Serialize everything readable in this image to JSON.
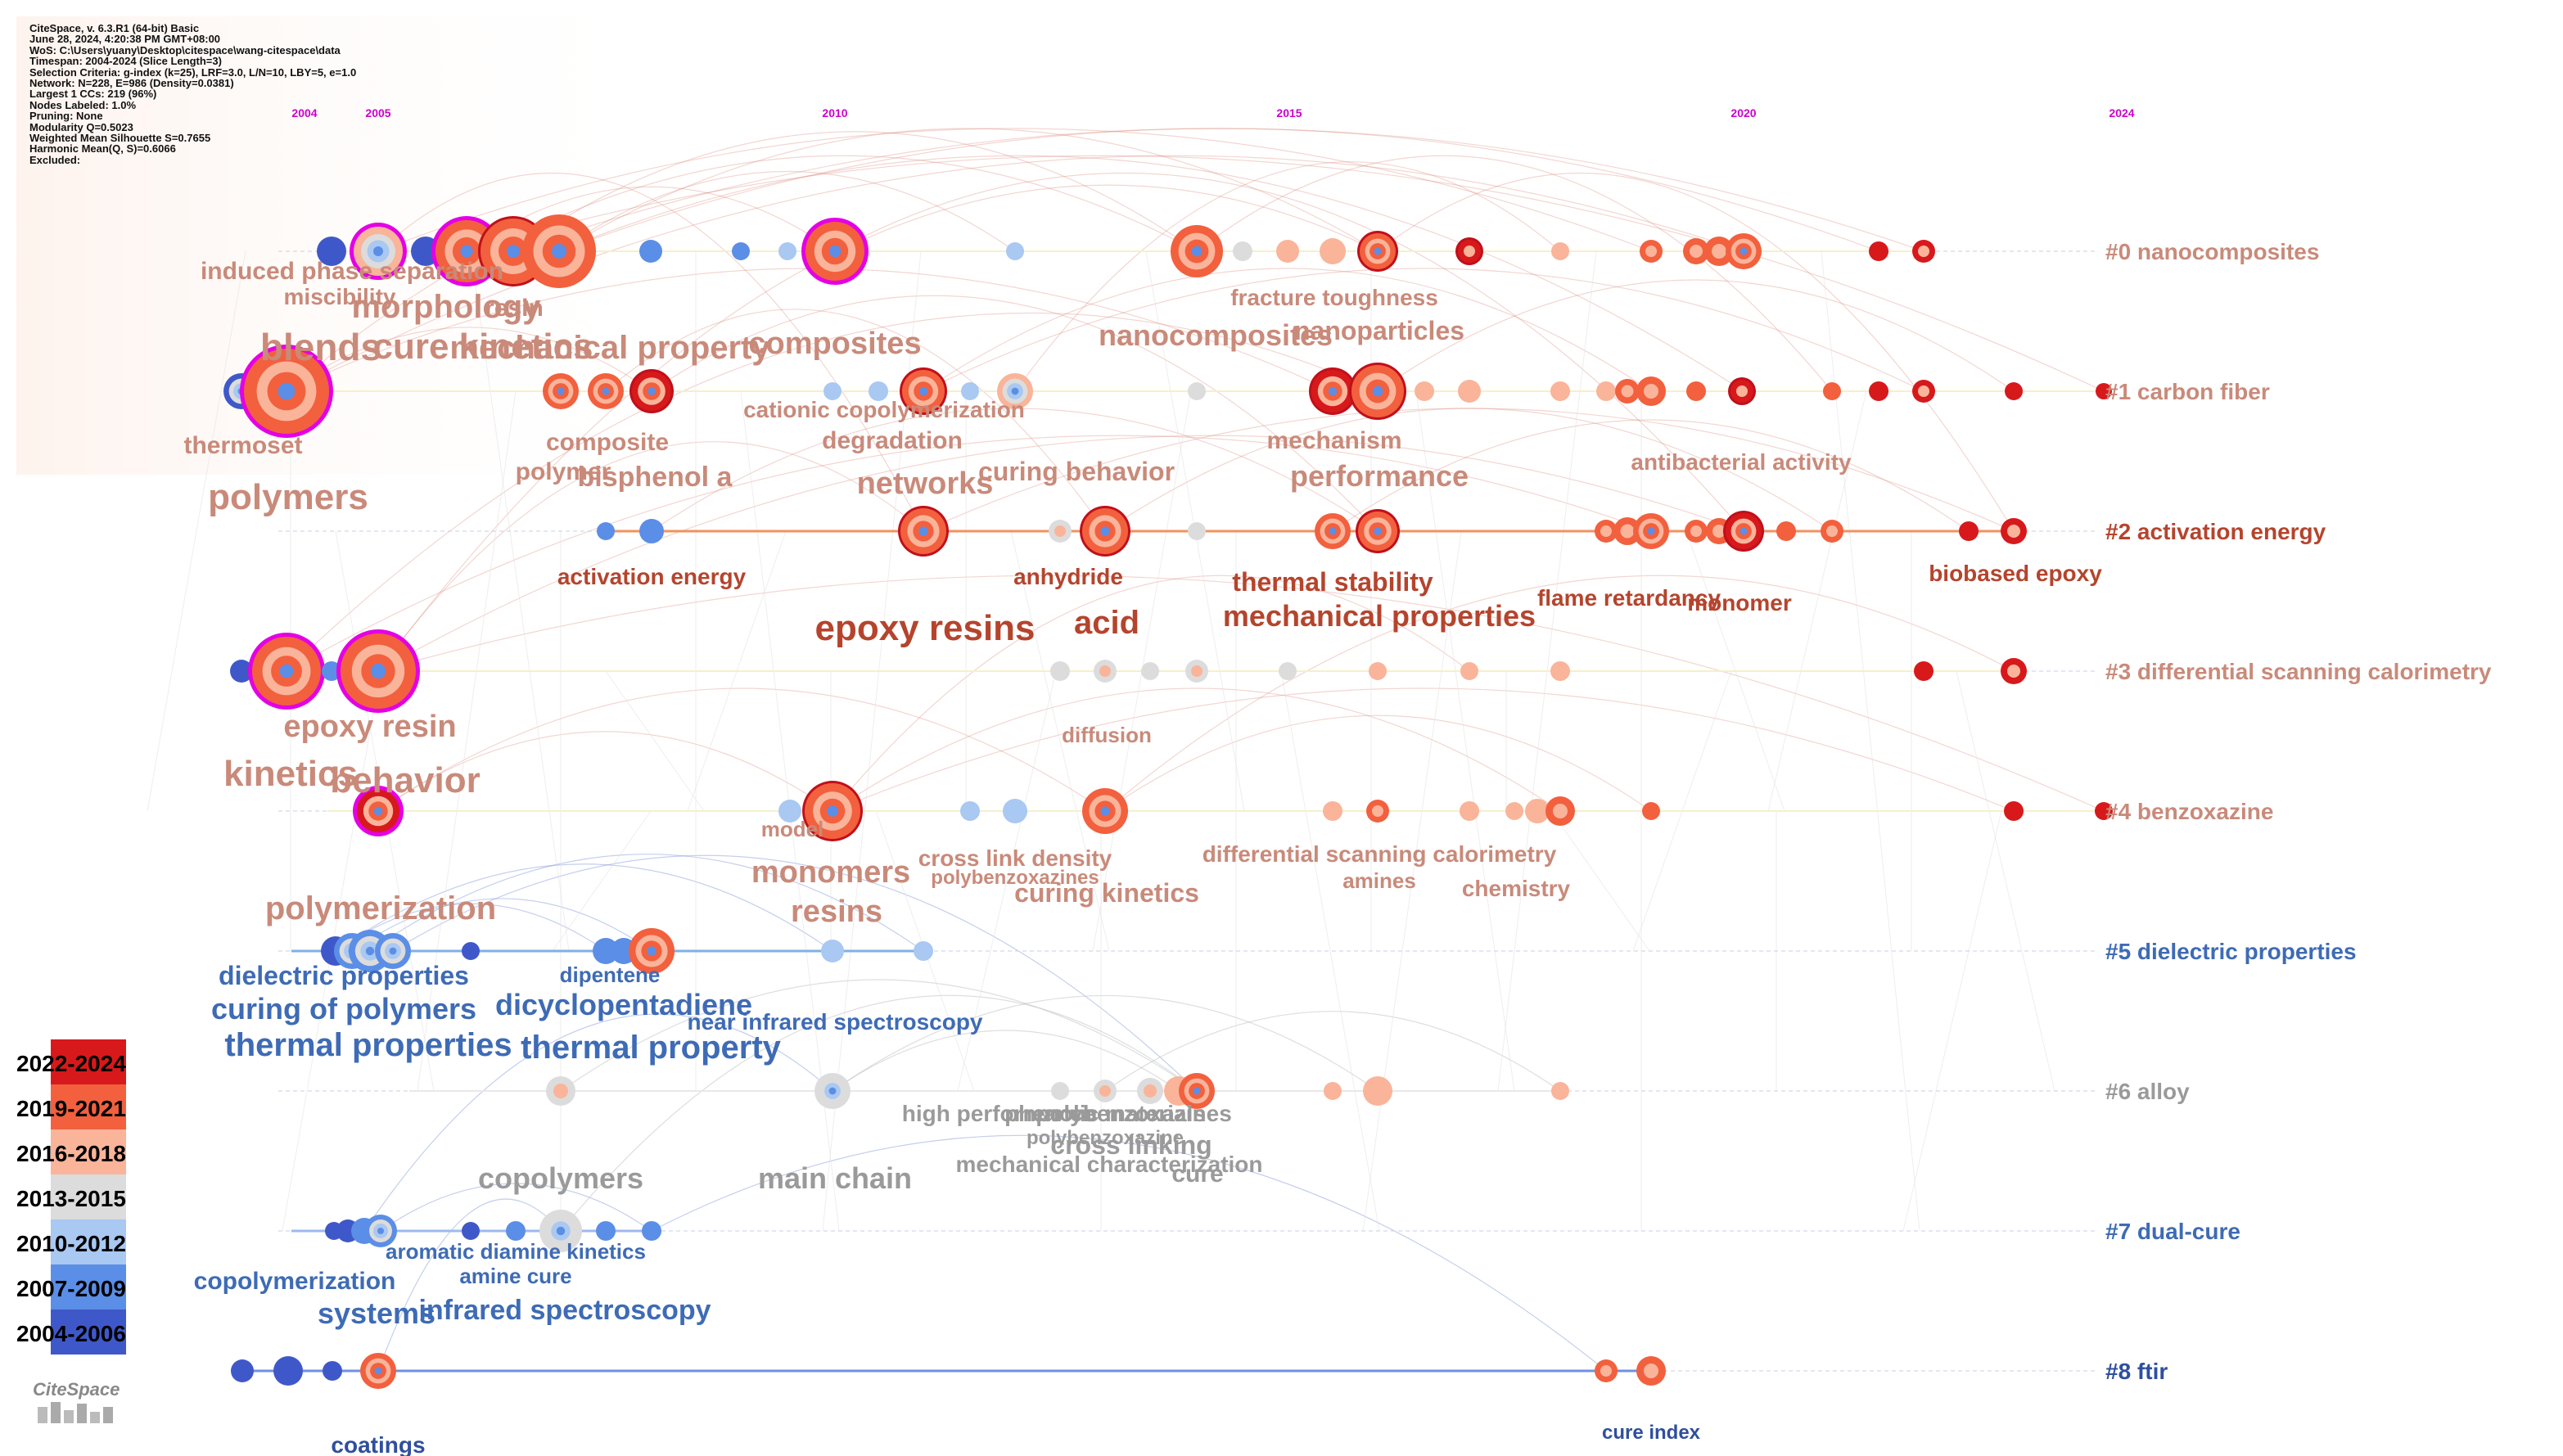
{
  "info": {
    "lines": [
      "CiteSpace, v. 6.3.R1 (64-bit) Basic",
      "June 28, 2024, 4:20:38 PM GMT+08:00",
      "WoS: C:\\Users\\yuany\\Desktop\\citespace\\wang-citespace\\data",
      "Timespan: 2004-2024 (Slice Length=3)",
      "Selection Criteria: g-index (k=25), LRF=3.0, L/N=10, LBY=5, e=1.0",
      "Network: N=228, E=986 (Density=0.0381)",
      "Largest 1 CCs: 219 (96%)",
      "Nodes Labeled: 1.0%",
      "Pruning: None",
      "Modularity Q=0.5023",
      "Weighted Mean Silhouette S=0.7655",
      "Harmonic Mean(Q, S)=0.6066",
      "Excluded:"
    ]
  },
  "timeline_years": [
    "2004",
    "2005",
    "2010",
    "2015",
    "2020",
    "2024"
  ],
  "legend": {
    "items": [
      {
        "label": "2022-2024",
        "color": "#d7191c"
      },
      {
        "label": "2019-2021",
        "color": "#f2603e"
      },
      {
        "label": "2016-2018",
        "color": "#f9b49a"
      },
      {
        "label": "2013-2015",
        "color": "#dcdcdc"
      },
      {
        "label": "2010-2012",
        "color": "#a9c8f2"
      },
      {
        "label": "2007-2009",
        "color": "#5b8ee6"
      },
      {
        "label": "2004-2006",
        "color": "#3f58c9"
      }
    ],
    "logo_text": "CiteSpace"
  },
  "clusters": [
    {
      "id": "#0 nanocomposites",
      "color": "#c98a7a"
    },
    {
      "id": "#1 carbon fiber",
      "color": "#c98a7a"
    },
    {
      "id": "#2 activation energy",
      "color": "#b5442d"
    },
    {
      "id": "#3 differential scanning calorimetry",
      "color": "#c98a7a"
    },
    {
      "id": "#4 benzoxazine",
      "color": "#c98a7a"
    },
    {
      "id": "#5 dielectric properties",
      "color": "#3e6bb5"
    },
    {
      "id": "#6 alloy",
      "color": "#9a9a9a"
    },
    {
      "id": "#7 dual-cure",
      "color": "#3e6bb5"
    },
    {
      "id": "#8 ftir",
      "color": "#2f4f9e"
    }
  ],
  "keywords": [
    {
      "text": "induced phase separation",
      "color": "#c98a7a"
    },
    {
      "text": "miscibility",
      "color": "#c98a7a"
    },
    {
      "text": "morphology",
      "color": "#c98a7a"
    },
    {
      "text": "resin",
      "color": "#c98a7a"
    },
    {
      "text": "blends",
      "color": "#c98a7a"
    },
    {
      "text": "cure kinetics",
      "color": "#c98a7a"
    },
    {
      "text": "mechanical property",
      "color": "#c98a7a"
    },
    {
      "text": "composites",
      "color": "#c98a7a"
    },
    {
      "text": "fracture toughness",
      "color": "#c98a7a"
    },
    {
      "text": "nanocomposites",
      "color": "#c98a7a"
    },
    {
      "text": "nanoparticles",
      "color": "#c98a7a"
    },
    {
      "text": "thermoset",
      "color": "#c98a7a"
    },
    {
      "text": "composite",
      "color": "#c98a7a"
    },
    {
      "text": "polymer",
      "color": "#c98a7a"
    },
    {
      "text": "bisphenol a",
      "color": "#c98a7a"
    },
    {
      "text": "cationic copolymerization",
      "color": "#c98a7a"
    },
    {
      "text": "degradation",
      "color": "#c98a7a"
    },
    {
      "text": "networks",
      "color": "#c98a7a"
    },
    {
      "text": "curing behavior",
      "color": "#c98a7a"
    },
    {
      "text": "mechanism",
      "color": "#c98a7a"
    },
    {
      "text": "performance",
      "color": "#c98a7a"
    },
    {
      "text": "antibacterial activity",
      "color": "#c98a7a"
    },
    {
      "text": "polymers",
      "color": "#c98a7a"
    },
    {
      "text": "activation energy",
      "color": "#b5442d"
    },
    {
      "text": "anhydride",
      "color": "#b5442d"
    },
    {
      "text": "thermal stability",
      "color": "#b5442d"
    },
    {
      "text": "mechanical properties",
      "color": "#b5442d"
    },
    {
      "text": "flame retardancy",
      "color": "#b5442d"
    },
    {
      "text": "monomer",
      "color": "#b5442d"
    },
    {
      "text": "biobased epoxy",
      "color": "#b5442d"
    },
    {
      "text": "epoxy resins",
      "color": "#b5442d"
    },
    {
      "text": "acid",
      "color": "#b5442d"
    },
    {
      "text": "epoxy resin",
      "color": "#c98a7a"
    },
    {
      "text": "kinetics",
      "color": "#c98a7a"
    },
    {
      "text": "behavior",
      "color": "#c98a7a"
    },
    {
      "text": "diffusion",
      "color": "#c98a7a"
    },
    {
      "text": "model",
      "color": "#c98a7a"
    },
    {
      "text": "monomers",
      "color": "#c98a7a"
    },
    {
      "text": "resins",
      "color": "#c98a7a"
    },
    {
      "text": "cross link density",
      "color": "#c98a7a"
    },
    {
      "text": "polybenzoxazines",
      "color": "#c98a7a"
    },
    {
      "text": "curing kinetics",
      "color": "#c98a7a"
    },
    {
      "text": "differential scanning calorimetry",
      "color": "#c98a7a"
    },
    {
      "text": "amines",
      "color": "#c98a7a"
    },
    {
      "text": "chemistry",
      "color": "#c98a7a"
    },
    {
      "text": "polymerization",
      "color": "#c98a7a"
    },
    {
      "text": "dielectric properties",
      "color": "#3e6bb5"
    },
    {
      "text": "curing of polymers",
      "color": "#3e6bb5"
    },
    {
      "text": "thermal properties",
      "color": "#3e6bb5"
    },
    {
      "text": "dipentene",
      "color": "#3e6bb5"
    },
    {
      "text": "dicyclopentadiene",
      "color": "#3e6bb5"
    },
    {
      "text": "thermal property",
      "color": "#3e6bb5"
    },
    {
      "text": "near infrared spectroscopy",
      "color": "#3e6bb5"
    },
    {
      "text": "high performance",
      "color": "#9a9a9a"
    },
    {
      "text": "phenolic materials",
      "color": "#9a9a9a"
    },
    {
      "text": "polybenzoxazines",
      "color": "#9a9a9a"
    },
    {
      "text": "polybenzoxazine",
      "color": "#9a9a9a"
    },
    {
      "text": "cross linking",
      "color": "#9a9a9a"
    },
    {
      "text": "mechanical characterization",
      "color": "#9a9a9a"
    },
    {
      "text": "cure",
      "color": "#9a9a9a"
    },
    {
      "text": "copolymers",
      "color": "#9a9a9a"
    },
    {
      "text": "main chain",
      "color": "#9a9a9a"
    },
    {
      "text": "aromatic diamine kinetics",
      "color": "#3e6bb5"
    },
    {
      "text": "copolymerization",
      "color": "#3e6bb5"
    },
    {
      "text": "amine cure",
      "color": "#3e6bb5"
    },
    {
      "text": "systems",
      "color": "#3e6bb5"
    },
    {
      "text": "infrared spectroscopy",
      "color": "#3e6bb5"
    },
    {
      "text": "cure index",
      "color": "#2f4f9e"
    },
    {
      "text": "coatings",
      "color": "#2f4f9e"
    }
  ]
}
